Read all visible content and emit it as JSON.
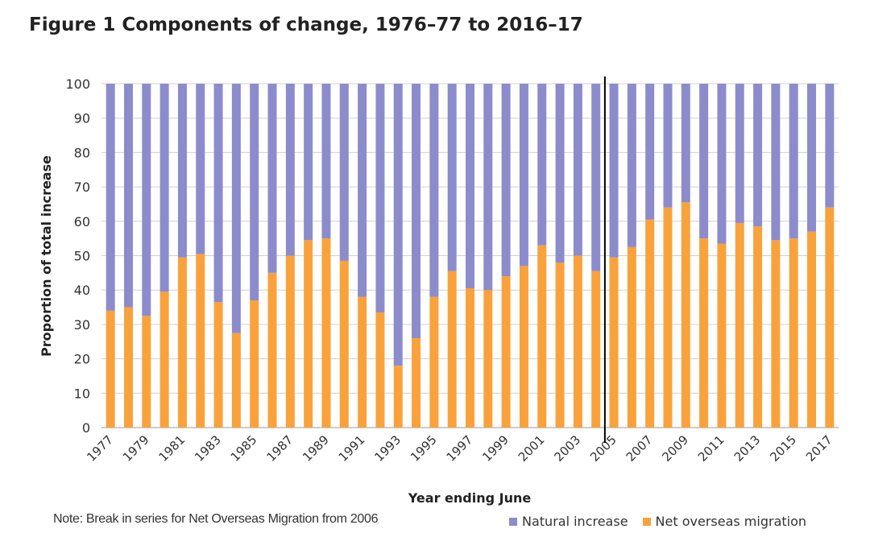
{
  "title": "Figure 1 Components of change, 1976–77 to 2016–17",
  "note": "Note: Break in series for Net Overseas Migration from 2006",
  "colors": {
    "natural": "#8c8ccc",
    "nom": "#f9a23c",
    "grid": "#d0d0d0",
    "axis": "#999999",
    "break_line": "#000000"
  },
  "chart_data": {
    "type": "bar",
    "stacked": true,
    "xlabel": "Year ending June",
    "ylabel": "Proportion of total increase",
    "ylim": [
      0,
      100
    ],
    "yticks": [
      0,
      10,
      20,
      30,
      40,
      50,
      60,
      70,
      80,
      90,
      100
    ],
    "categories": [
      "1977",
      "1978",
      "1979",
      "1980",
      "1981",
      "1982",
      "1983",
      "1984",
      "1985",
      "1986",
      "1987",
      "1988",
      "1989",
      "1990",
      "1991",
      "1992",
      "1993",
      "1994",
      "1995",
      "1996",
      "1997",
      "1998",
      "1999",
      "2000",
      "2001",
      "2002",
      "2003",
      "2004",
      "2005",
      "2006",
      "2007",
      "2008",
      "2009",
      "2010",
      "2011",
      "2012",
      "2013",
      "2014",
      "2015",
      "2016",
      "2017"
    ],
    "tick_labels": [
      "1977",
      "1979",
      "1981",
      "1983",
      "1985",
      "1987",
      "1989",
      "1991",
      "1993",
      "1995",
      "1997",
      "1999",
      "2001",
      "2003",
      "2005",
      "2007",
      "2009",
      "2011",
      "2013",
      "2015",
      "2017"
    ],
    "series": [
      {
        "name": "Net overseas migration",
        "values": [
          34,
          35,
          32.5,
          39.5,
          49.5,
          50.5,
          36.5,
          27.5,
          37,
          45,
          50,
          54.5,
          55,
          48.5,
          38,
          33.5,
          18,
          26,
          38,
          45.5,
          40.5,
          40,
          44,
          47,
          53,
          48,
          50,
          45.5,
          49.5,
          52.5,
          60.5,
          64,
          65.5,
          55,
          53.5,
          59.5,
          58.5,
          54.5,
          55,
          57,
          64
        ]
      },
      {
        "name": "Natural increase",
        "values": [
          66,
          65,
          67.5,
          60.5,
          50.5,
          49.5,
          63.5,
          72.5,
          63,
          55,
          50,
          45.5,
          45,
          51.5,
          62,
          66.5,
          82,
          74,
          62,
          54.5,
          59.5,
          60,
          56,
          53,
          47,
          52,
          50,
          54.5,
          50.5,
          47.5,
          39.5,
          36,
          34.5,
          45,
          46.5,
          40.5,
          41.5,
          45.5,
          45,
          43,
          36
        ]
      }
    ],
    "break_after": "2004",
    "legend": {
      "position": "bottom-right",
      "order": [
        "Natural increase",
        "Net overseas migration"
      ]
    },
    "grid": true
  }
}
